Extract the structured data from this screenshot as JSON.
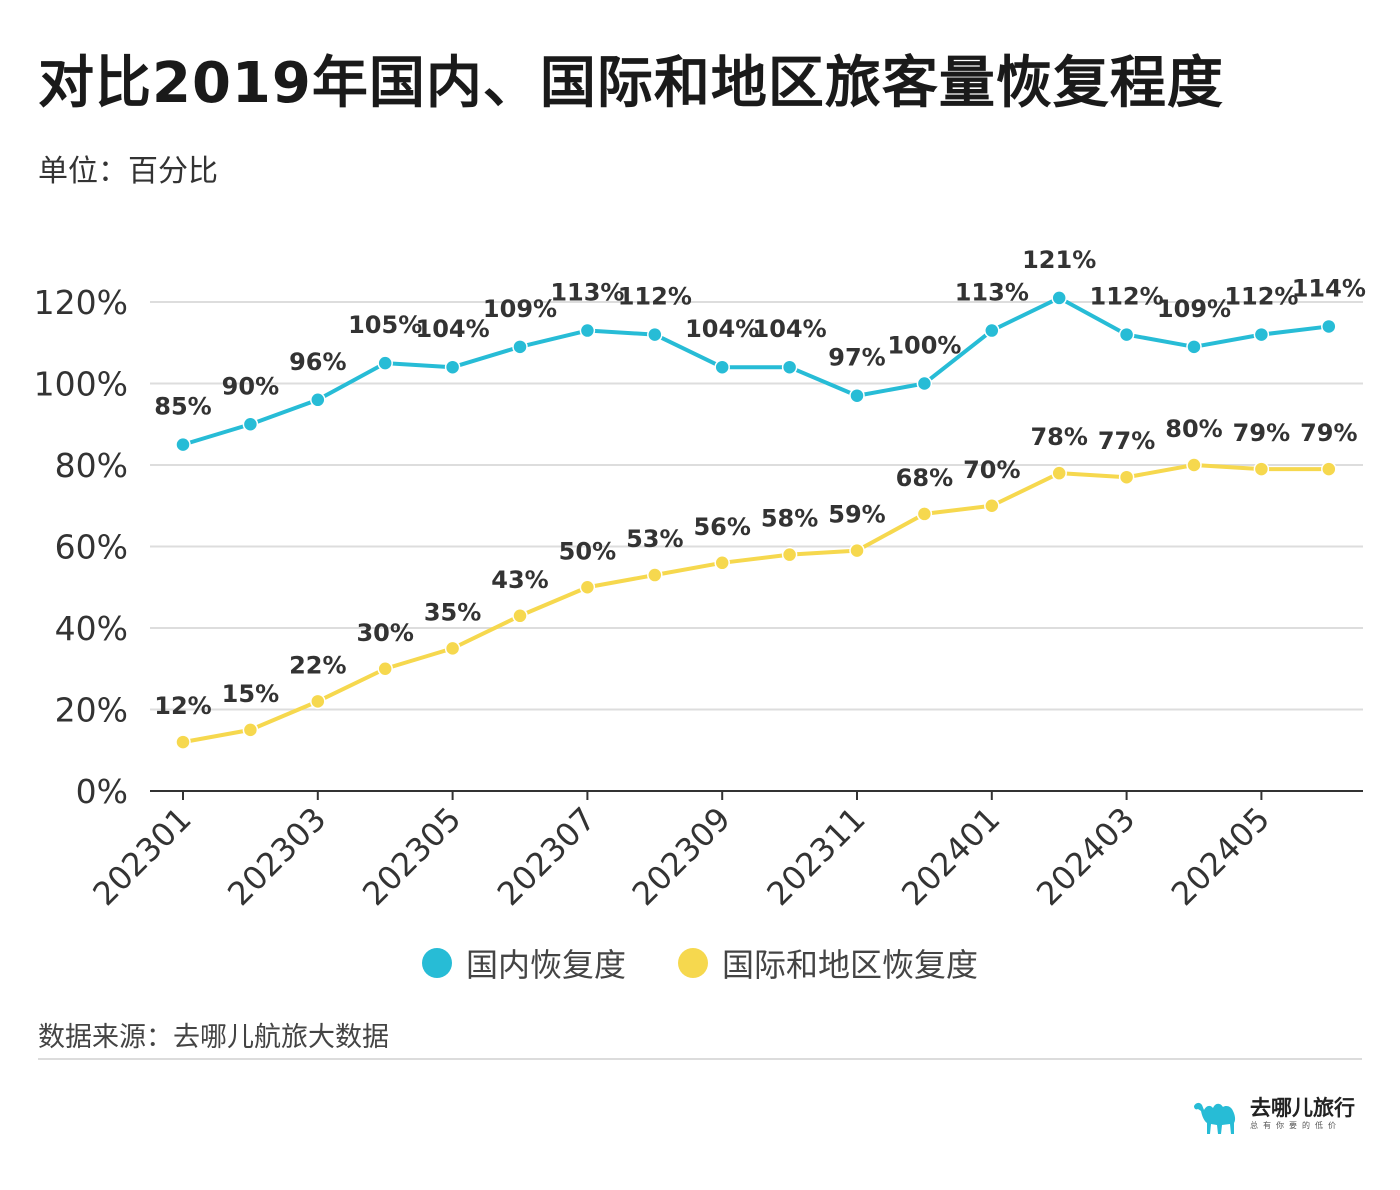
{
  "title": "对比2019年国内、国际和地区旅客量恢复程度",
  "unit": "单位：百分比",
  "source": "数据来源：去哪儿航旅大数据",
  "brand": {
    "name": "去哪儿旅行",
    "slogan": "总有你要的低价",
    "logo_icon": "camel-icon"
  },
  "colors": {
    "domestic": "#27bcd6",
    "international": "#f6d84e",
    "grid": "#dddddd",
    "axis": "#333333"
  },
  "chart_data": {
    "type": "line",
    "title": "对比2019年国内、国际和地区旅客量恢复程度",
    "ylabel": "",
    "xlabel": "",
    "ylim": [
      0,
      120
    ],
    "yticks": [
      "0%",
      "20%",
      "40%",
      "60%",
      "80%",
      "100%",
      "120%"
    ],
    "grid": true,
    "legend_position": "bottom-center",
    "x": [
      "202301",
      "202302",
      "202303",
      "202304",
      "202305",
      "202306",
      "202307",
      "202308",
      "202309",
      "202310",
      "202311",
      "202312",
      "202401",
      "202402",
      "202403",
      "202404",
      "202405",
      "202406"
    ],
    "xtick_labels": [
      "202301",
      "202303",
      "202305",
      "202307",
      "202309",
      "202311",
      "202401",
      "202403",
      "202405"
    ],
    "series": [
      {
        "name": "国内恢复度",
        "color": "#27bcd6",
        "values": [
          85,
          90,
          96,
          105,
          104,
          109,
          113,
          112,
          104,
          104,
          97,
          100,
          113,
          121,
          112,
          109,
          112,
          114
        ]
      },
      {
        "name": "国际和地区恢复度",
        "color": "#f6d84e",
        "values": [
          12,
          15,
          22,
          30,
          35,
          43,
          50,
          53,
          56,
          58,
          59,
          68,
          70,
          78,
          77,
          80,
          79,
          79
        ]
      }
    ]
  }
}
